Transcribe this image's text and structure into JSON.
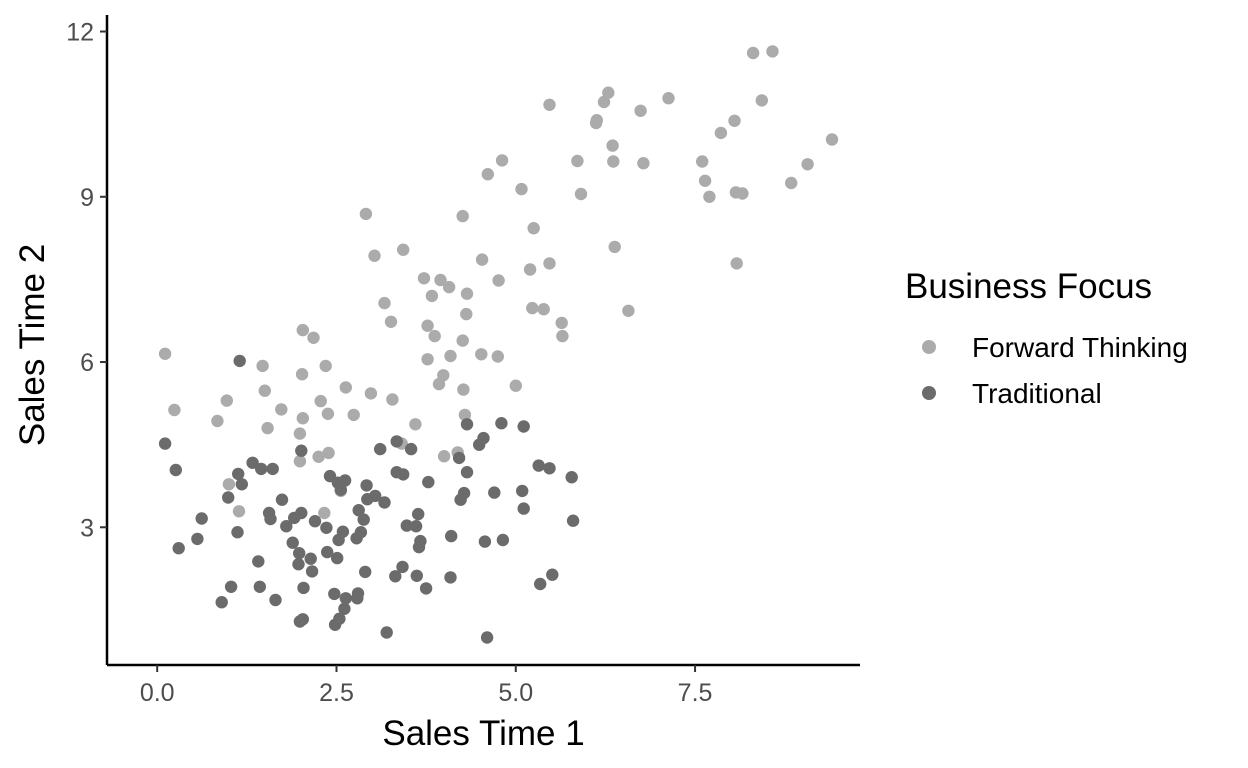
{
  "chart_data": {
    "type": "scatter",
    "xlabel": "Sales Time 1",
    "ylabel": "Sales Time 2",
    "xlim": [
      -0.7,
      9.8
    ],
    "ylim": [
      0.5,
      12.3
    ],
    "x_ticks": [
      0.0,
      2.5,
      5.0,
      7.5
    ],
    "x_tick_labels": [
      "0.0",
      "2.5",
      "5.0",
      "7.5"
    ],
    "y_ticks": [
      3,
      6,
      9,
      12
    ],
    "y_tick_labels": [
      "3",
      "6",
      "9",
      "12"
    ],
    "grid": false,
    "legend": {
      "title": "Business Focus",
      "position": "right"
    },
    "series": [
      {
        "name": "Forward Thinking",
        "color": "#ababab",
        "points": [
          [
            0.11,
            6.15
          ],
          [
            0.24,
            5.13
          ],
          [
            0.84,
            4.93
          ],
          [
            0.97,
            5.3
          ],
          [
            1.0,
            3.78
          ],
          [
            1.14,
            3.29
          ],
          [
            1.47,
            5.93
          ],
          [
            1.5,
            5.48
          ],
          [
            1.54,
            4.8
          ],
          [
            1.73,
            5.14
          ],
          [
            1.99,
            4.7
          ],
          [
            1.99,
            4.2
          ],
          [
            2.02,
            5.78
          ],
          [
            2.03,
            4.98
          ],
          [
            2.03,
            6.58
          ],
          [
            2.18,
            6.44
          ],
          [
            2.25,
            4.28
          ],
          [
            2.28,
            5.29
          ],
          [
            2.33,
            3.26
          ],
          [
            2.35,
            5.93
          ],
          [
            2.38,
            5.06
          ],
          [
            2.39,
            4.35
          ],
          [
            2.56,
            3.66
          ],
          [
            2.63,
            5.54
          ],
          [
            2.74,
            5.04
          ],
          [
            2.91,
            8.69
          ],
          [
            2.98,
            5.43
          ],
          [
            3.03,
            7.93
          ],
          [
            3.17,
            7.07
          ],
          [
            3.26,
            6.73
          ],
          [
            3.28,
            5.32
          ],
          [
            3.41,
            4.52
          ],
          [
            3.43,
            8.04
          ],
          [
            3.6,
            4.87
          ],
          [
            3.72,
            7.52
          ],
          [
            3.77,
            6.66
          ],
          [
            3.77,
            6.05
          ],
          [
            3.83,
            7.2
          ],
          [
            3.87,
            6.47
          ],
          [
            3.93,
            5.6
          ],
          [
            3.95,
            7.49
          ],
          [
            3.99,
            5.76
          ],
          [
            4.0,
            4.29
          ],
          [
            4.07,
            7.36
          ],
          [
            4.09,
            6.11
          ],
          [
            4.19,
            4.36
          ],
          [
            4.26,
            8.65
          ],
          [
            4.26,
            6.39
          ],
          [
            4.27,
            5.5
          ],
          [
            4.29,
            5.04
          ],
          [
            4.31,
            6.87
          ],
          [
            4.32,
            7.24
          ],
          [
            4.52,
            6.14
          ],
          [
            4.53,
            7.86
          ],
          [
            4.61,
            9.41
          ],
          [
            4.75,
            6.1
          ],
          [
            4.76,
            7.48
          ],
          [
            4.81,
            9.66
          ],
          [
            5.0,
            5.57
          ],
          [
            5.08,
            9.14
          ],
          [
            5.2,
            7.68
          ],
          [
            5.23,
            6.98
          ],
          [
            5.25,
            8.43
          ],
          [
            5.39,
            6.96
          ],
          [
            5.47,
            10.67
          ],
          [
            5.47,
            7.79
          ],
          [
            5.64,
            6.71
          ],
          [
            5.65,
            6.47
          ],
          [
            5.86,
            9.65
          ],
          [
            5.91,
            9.05
          ],
          [
            6.12,
            10.34
          ],
          [
            6.13,
            10.39
          ],
          [
            6.23,
            10.72
          ],
          [
            6.29,
            10.89
          ],
          [
            6.35,
            9.93
          ],
          [
            6.36,
            9.64
          ],
          [
            6.38,
            8.09
          ],
          [
            6.57,
            6.93
          ],
          [
            6.74,
            10.56
          ],
          [
            6.78,
            9.61
          ],
          [
            7.13,
            10.79
          ],
          [
            7.6,
            9.64
          ],
          [
            7.64,
            9.29
          ],
          [
            7.7,
            9.0
          ],
          [
            7.86,
            10.16
          ],
          [
            8.05,
            10.38
          ],
          [
            8.07,
            9.08
          ],
          [
            8.08,
            7.79
          ],
          [
            8.16,
            9.06
          ],
          [
            8.31,
            11.61
          ],
          [
            8.43,
            10.75
          ],
          [
            8.58,
            11.64
          ],
          [
            8.84,
            9.25
          ],
          [
            9.07,
            9.59
          ],
          [
            9.41,
            10.04
          ]
        ]
      },
      {
        "name": "Traditional",
        "color": "#6b6b6b",
        "points": [
          [
            0.11,
            4.52
          ],
          [
            0.26,
            4.04
          ],
          [
            0.3,
            2.62
          ],
          [
            0.56,
            2.79
          ],
          [
            0.62,
            3.16
          ],
          [
            0.9,
            1.64
          ],
          [
            0.99,
            3.54
          ],
          [
            1.03,
            1.92
          ],
          [
            1.12,
            2.91
          ],
          [
            1.13,
            3.97
          ],
          [
            1.15,
            6.02
          ],
          [
            1.18,
            3.78
          ],
          [
            1.33,
            4.17
          ],
          [
            1.41,
            2.38
          ],
          [
            1.43,
            1.92
          ],
          [
            1.45,
            4.06
          ],
          [
            1.56,
            3.26
          ],
          [
            1.58,
            3.15
          ],
          [
            1.61,
            4.06
          ],
          [
            1.65,
            1.68
          ],
          [
            1.74,
            3.5
          ],
          [
            1.8,
            3.02
          ],
          [
            1.89,
            2.72
          ],
          [
            1.91,
            3.17
          ],
          [
            1.97,
            2.33
          ],
          [
            1.98,
            2.53
          ],
          [
            1.99,
            1.29
          ],
          [
            2.01,
            3.26
          ],
          [
            2.01,
            4.39
          ],
          [
            2.03,
            1.33
          ],
          [
            2.04,
            1.9
          ],
          [
            2.14,
            2.43
          ],
          [
            2.16,
            2.2
          ],
          [
            2.2,
            3.11
          ],
          [
            2.36,
            2.99
          ],
          [
            2.37,
            2.55
          ],
          [
            2.41,
            3.93
          ],
          [
            2.47,
            1.79
          ],
          [
            2.48,
            1.23
          ],
          [
            2.51,
            2.44
          ],
          [
            2.52,
            3.81
          ],
          [
            2.53,
            2.77
          ],
          [
            2.54,
            1.34
          ],
          [
            2.56,
            3.68
          ],
          [
            2.59,
            2.92
          ],
          [
            2.61,
            1.52
          ],
          [
            2.62,
            3.85
          ],
          [
            2.63,
            1.71
          ],
          [
            2.78,
            2.8
          ],
          [
            2.79,
            1.71
          ],
          [
            2.8,
            1.8
          ],
          [
            2.81,
            3.31
          ],
          [
            2.84,
            2.91
          ],
          [
            2.88,
            3.14
          ],
          [
            2.9,
            2.19
          ],
          [
            2.92,
            3.76
          ],
          [
            2.93,
            3.51
          ],
          [
            3.04,
            3.57
          ],
          [
            3.11,
            4.42
          ],
          [
            3.17,
            3.45
          ],
          [
            3.2,
            1.09
          ],
          [
            3.32,
            2.11
          ],
          [
            3.34,
            4.56
          ],
          [
            3.34,
            4.0
          ],
          [
            3.42,
            2.28
          ],
          [
            3.43,
            3.96
          ],
          [
            3.48,
            3.03
          ],
          [
            3.54,
            4.42
          ],
          [
            3.61,
            3.02
          ],
          [
            3.62,
            2.12
          ],
          [
            3.64,
            3.24
          ],
          [
            3.65,
            2.64
          ],
          [
            3.67,
            2.75
          ],
          [
            3.75,
            1.89
          ],
          [
            3.78,
            3.82
          ],
          [
            4.09,
            2.09
          ],
          [
            4.1,
            2.84
          ],
          [
            4.21,
            4.26
          ],
          [
            4.23,
            3.5
          ],
          [
            4.28,
            3.62
          ],
          [
            4.32,
            4.0
          ],
          [
            4.32,
            4.87
          ],
          [
            4.49,
            4.5
          ],
          [
            4.55,
            4.62
          ],
          [
            4.57,
            2.74
          ],
          [
            4.6,
            1.0
          ],
          [
            4.7,
            3.63
          ],
          [
            4.8,
            4.89
          ],
          [
            4.82,
            2.77
          ],
          [
            5.09,
            3.66
          ],
          [
            5.11,
            4.83
          ],
          [
            5.11,
            3.34
          ],
          [
            5.32,
            4.12
          ],
          [
            5.34,
            1.97
          ],
          [
            5.47,
            4.07
          ],
          [
            5.51,
            2.14
          ],
          [
            5.78,
            3.91
          ],
          [
            5.8,
            3.12
          ]
        ]
      }
    ]
  }
}
